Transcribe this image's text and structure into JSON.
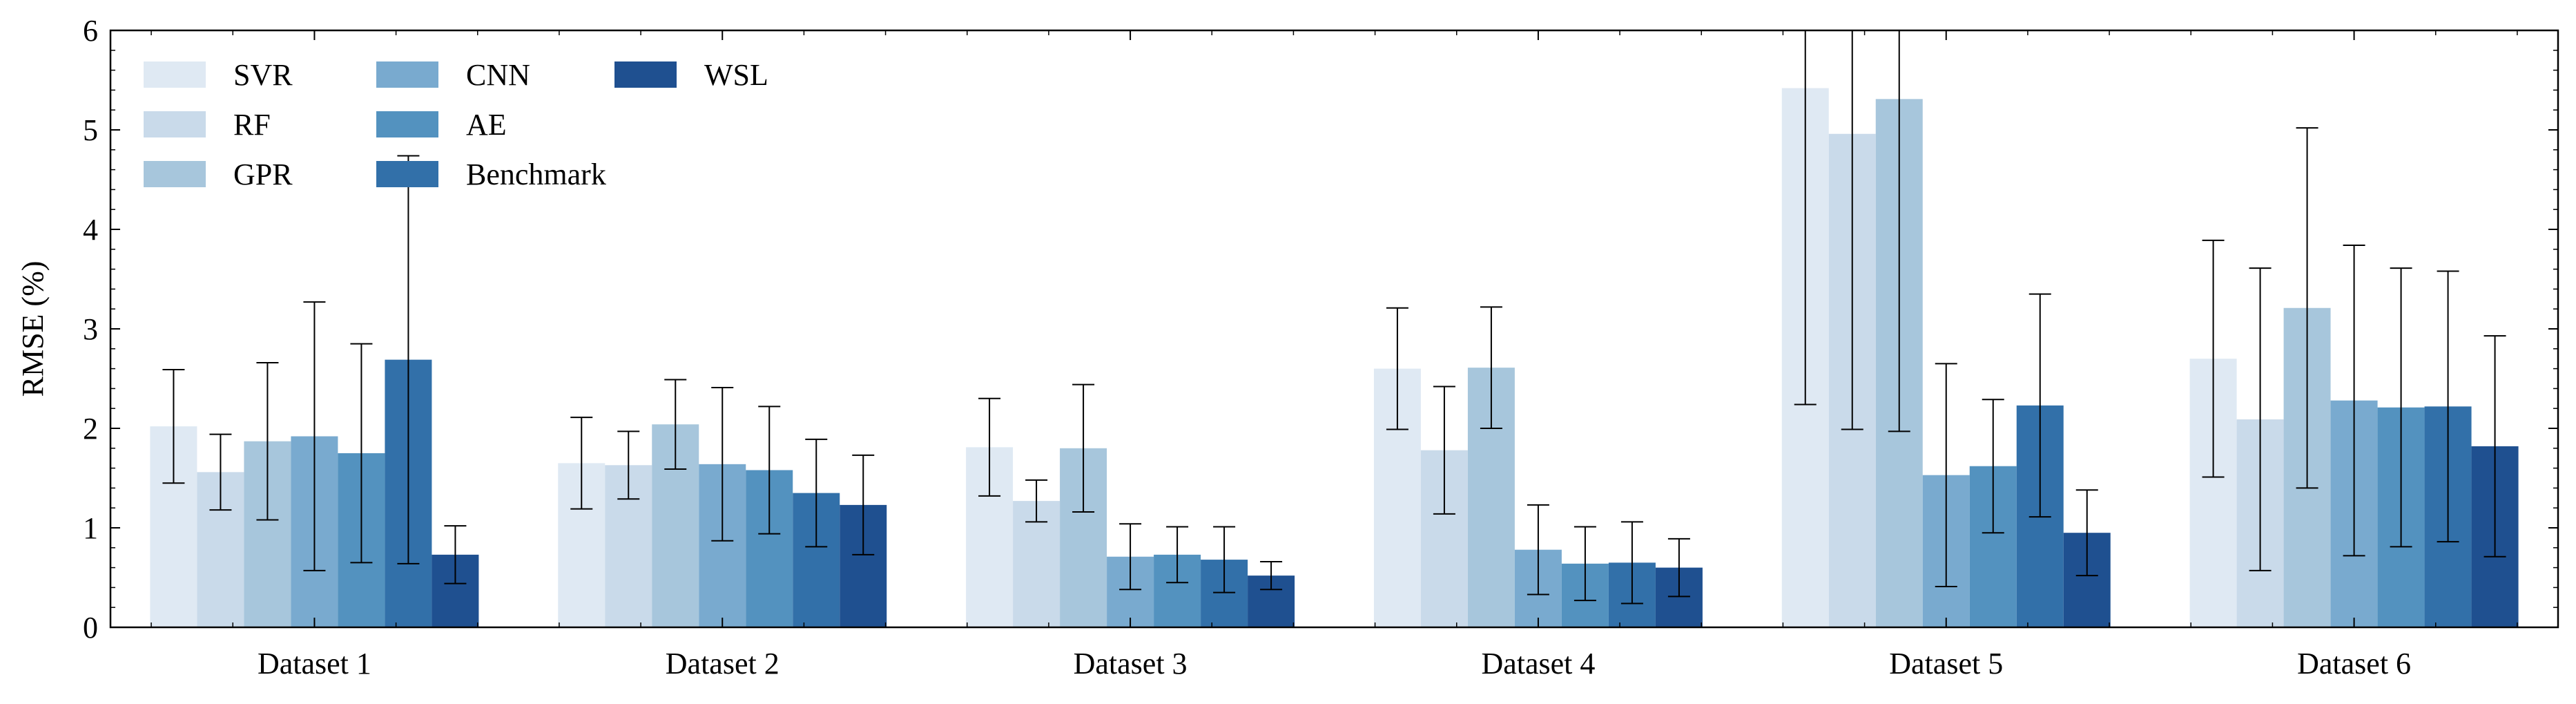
{
  "chart_data": {
    "type": "bar",
    "ylabel": "RMSE (%)",
    "xlabel": "",
    "ylim": [
      0,
      6
    ],
    "yticks": [
      "0",
      "1",
      "2",
      "3",
      "4",
      "5",
      "6"
    ],
    "grid": false,
    "legend_position": "top-left",
    "categories": [
      "Dataset 1",
      "Dataset 2",
      "Dataset 3",
      "Dataset 4",
      "Dataset 5",
      "Dataset 6"
    ],
    "series": [
      {
        "name": "SVR",
        "color": "#dfe9f3",
        "values": [
          2.02,
          1.65,
          1.81,
          2.6,
          5.42,
          2.7
        ],
        "error": [
          0.57,
          0.46,
          0.49,
          0.61,
          3.18,
          1.19
        ]
      },
      {
        "name": "RF",
        "color": "#c9daea",
        "values": [
          1.56,
          1.63,
          1.27,
          1.78,
          4.96,
          2.09
        ],
        "error": [
          0.38,
          0.34,
          0.21,
          0.64,
          2.97,
          1.52
        ]
      },
      {
        "name": "GPR",
        "color": "#a7c6dc",
        "values": [
          1.87,
          2.04,
          1.8,
          2.61,
          5.31,
          3.21
        ],
        "error": [
          0.79,
          0.45,
          0.64,
          0.61,
          3.34,
          1.81
        ]
      },
      {
        "name": "CNN",
        "color": "#79aacf",
        "values": [
          1.92,
          1.64,
          0.71,
          0.78,
          1.53,
          2.28
        ],
        "error": [
          1.35,
          0.77,
          0.33,
          0.45,
          1.12,
          1.56
        ]
      },
      {
        "name": "AE",
        "color": "#5392bf",
        "values": [
          1.75,
          1.58,
          0.73,
          0.64,
          1.62,
          2.21
        ],
        "error": [
          1.1,
          0.64,
          0.28,
          0.37,
          0.67,
          1.4
        ]
      },
      {
        "name": "Benchmark",
        "color": "#3270a9",
        "values": [
          2.69,
          1.35,
          0.68,
          0.65,
          2.23,
          2.22
        ],
        "error": [
          2.05,
          0.54,
          0.33,
          0.41,
          1.12,
          1.36
        ]
      },
      {
        "name": "WSL",
        "color": "#1f5090",
        "values": [
          0.73,
          1.23,
          0.52,
          0.6,
          0.95,
          1.82
        ],
        "error": [
          0.29,
          0.5,
          0.14,
          0.29,
          0.43,
          1.11
        ]
      }
    ]
  }
}
